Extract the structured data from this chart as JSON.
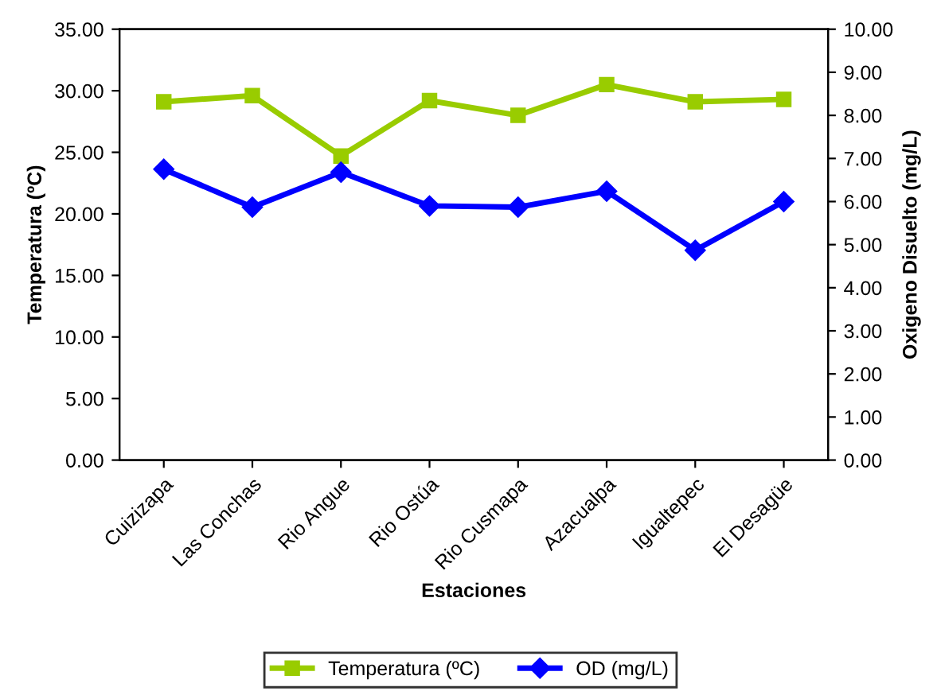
{
  "chart_data": {
    "type": "line",
    "xlabel": "Estaciones",
    "ylabel": "Temperatura (ºC)",
    "y2label": "Oxigeno Disuelto (mg/L)",
    "categories": [
      "Cuizizapa",
      "Las Conchas",
      "Rio Angue",
      "Rio Ostúa",
      "Rio Cusmapa",
      "Azacualpa",
      "Igualtepec",
      "El Desagüe"
    ],
    "series": [
      {
        "name": "Temperatura (ºC)",
        "color": "#99cc00",
        "marker": "square",
        "values": [
          29.1,
          29.6,
          24.7,
          29.2,
          28.0,
          30.5,
          29.1,
          29.3
        ]
      },
      {
        "name": "OD (mg/L)",
        "color": "#0000ff",
        "marker": "diamond",
        "axis": "y2",
        "values": [
          6.75,
          5.87,
          6.68,
          5.9,
          5.87,
          6.24,
          4.87,
          6.0
        ]
      }
    ],
    "ylim": [
      0,
      35
    ],
    "yticks": [
      {
        "value": 0,
        "label": "0.00"
      },
      {
        "value": 5,
        "label": "5.00"
      },
      {
        "value": 10,
        "label": "10.00"
      },
      {
        "value": 15,
        "label": "15.00"
      },
      {
        "value": 20,
        "label": "20.00"
      },
      {
        "value": 25,
        "label": "25.00"
      },
      {
        "value": 30,
        "label": "30.00"
      },
      {
        "value": 35,
        "label": "35.00"
      }
    ],
    "y2lim": [
      0,
      10
    ],
    "y2ticks": [
      {
        "value": 0,
        "label": "0.00"
      },
      {
        "value": 1,
        "label": "1.00"
      },
      {
        "value": 2,
        "label": "2.00"
      },
      {
        "value": 3,
        "label": "3.00"
      },
      {
        "value": 4,
        "label": "4.00"
      },
      {
        "value": 5,
        "label": "5.00"
      },
      {
        "value": 6,
        "label": "6.00"
      },
      {
        "value": 7,
        "label": "7.00"
      },
      {
        "value": 8,
        "label": "8.00"
      },
      {
        "value": 9,
        "label": "9.00"
      },
      {
        "value": 10,
        "label": "10.00"
      }
    ],
    "grid": false,
    "legend": "bottom"
  }
}
